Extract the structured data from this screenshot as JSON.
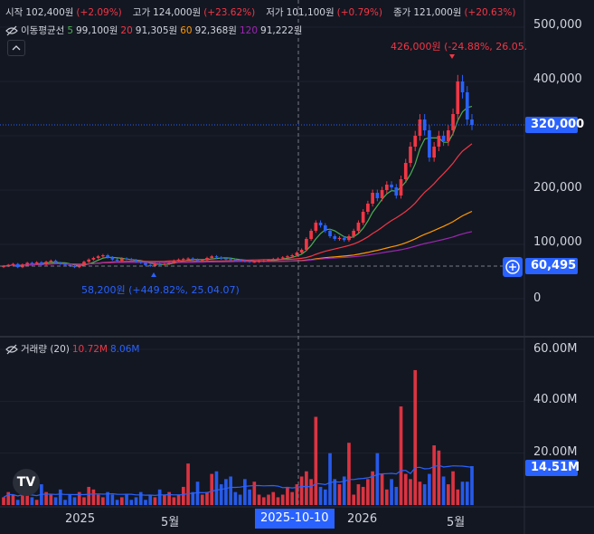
{
  "ohlc_header": {
    "open_label": "시작",
    "open_value": "102,400원",
    "open_pct": "(+2.09%)",
    "high_label": "고가",
    "high_value": "124,000원",
    "high_pct": "(+23.62%)",
    "low_label": "저가",
    "low_value": "101,100원",
    "low_pct": "(+0.79%)",
    "close_label": "종가",
    "close_value": "121,000원",
    "close_pct": "(+20.63%)"
  },
  "ma_header": {
    "title": "이동평균선",
    "p5": "5",
    "v5": "99,100원",
    "p20": "20",
    "v20": "91,305원",
    "p60": "60",
    "v60": "92,368원",
    "p120": "120",
    "v120": "91,222원"
  },
  "volume_header": {
    "title": "거래량 (20)",
    "v1": "10.72M",
    "v2": "8.06M"
  },
  "price_axis": [
    "500,000",
    "400,000",
    "320,000",
    "200,000",
    "100,000",
    "0"
  ],
  "volume_axis": [
    "60.00M",
    "40.00M",
    "20.00M"
  ],
  "price_tag": "320,000",
  "cursor_price_tag": "60,495",
  "volume_tag": "14.51M",
  "time_axis": [
    "2025",
    "5월",
    "2026",
    "5월"
  ],
  "cursor_date": "2025-10-10",
  "high_annotation": "426,000원 (-24.88%, 26.05.",
  "low_annotation": "58,200원 (+449.82%, 25.04.07)",
  "logo": "TV",
  "colors": {
    "up": "#f23645",
    "down": "#2962ff",
    "bg": "#131722",
    "ma5": "#4caf50",
    "ma20": "#f23645",
    "ma60": "#ff9800",
    "ma120": "#9c27b0"
  },
  "chart_data": {
    "type": "candlestick",
    "x_range": [
      "2024-10",
      "2026-06"
    ],
    "y_range": [
      0,
      550000
    ],
    "closes": [
      60000,
      62000,
      64000,
      58000,
      63000,
      66000,
      65000,
      67000,
      63000,
      68000,
      70000,
      66000,
      64000,
      62000,
      60000,
      58000,
      62000,
      68000,
      72000,
      75000,
      78000,
      80000,
      76000,
      72000,
      70000,
      74000,
      73000,
      71000,
      68000,
      66000,
      62000,
      60000,
      65000,
      63000,
      64000,
      66000,
      70000,
      72000,
      73000,
      74000,
      72000,
      70000,
      71000,
      75000,
      78000,
      76000,
      74000,
      73000,
      72000,
      71000,
      70000,
      69000,
      68000,
      68000,
      69000,
      70000,
      71000,
      73000,
      74000,
      76000,
      78000,
      80000,
      85000,
      90000,
      110000,
      125000,
      140000,
      135000,
      125000,
      115000,
      110000,
      112000,
      108000,
      115000,
      125000,
      140000,
      160000,
      175000,
      195000,
      185000,
      200000,
      210000,
      205000,
      190000,
      220000,
      250000,
      280000,
      300000,
      330000,
      310000,
      260000,
      280000,
      300000,
      290000,
      310000,
      340000,
      400000,
      380000,
      330000,
      320000
    ],
    "volume_bars_m": [
      3,
      5,
      4,
      2,
      6,
      4,
      3,
      2,
      8,
      5,
      4,
      3,
      6,
      2,
      4,
      3,
      5,
      3,
      7,
      6,
      4,
      3,
      5,
      4,
      2,
      3,
      4,
      2,
      3,
      5,
      2,
      4,
      3,
      6,
      4,
      5,
      3,
      4,
      7,
      16,
      5,
      9,
      4,
      5,
      12,
      13,
      8,
      10,
      11,
      5,
      4,
      10,
      6,
      9,
      4,
      3,
      4,
      5,
      3,
      4,
      7,
      5,
      8,
      11,
      13,
      10,
      34,
      7,
      6,
      20,
      10,
      8,
      11,
      24,
      4,
      8,
      7,
      10,
      13,
      20,
      12,
      6,
      10,
      7,
      38,
      12,
      10,
      52,
      9,
      8,
      12,
      23,
      21,
      11,
      8,
      13,
      6,
      9,
      9,
      15
    ],
    "ma_series": [
      "5",
      "20",
      "60",
      "120"
    ]
  }
}
